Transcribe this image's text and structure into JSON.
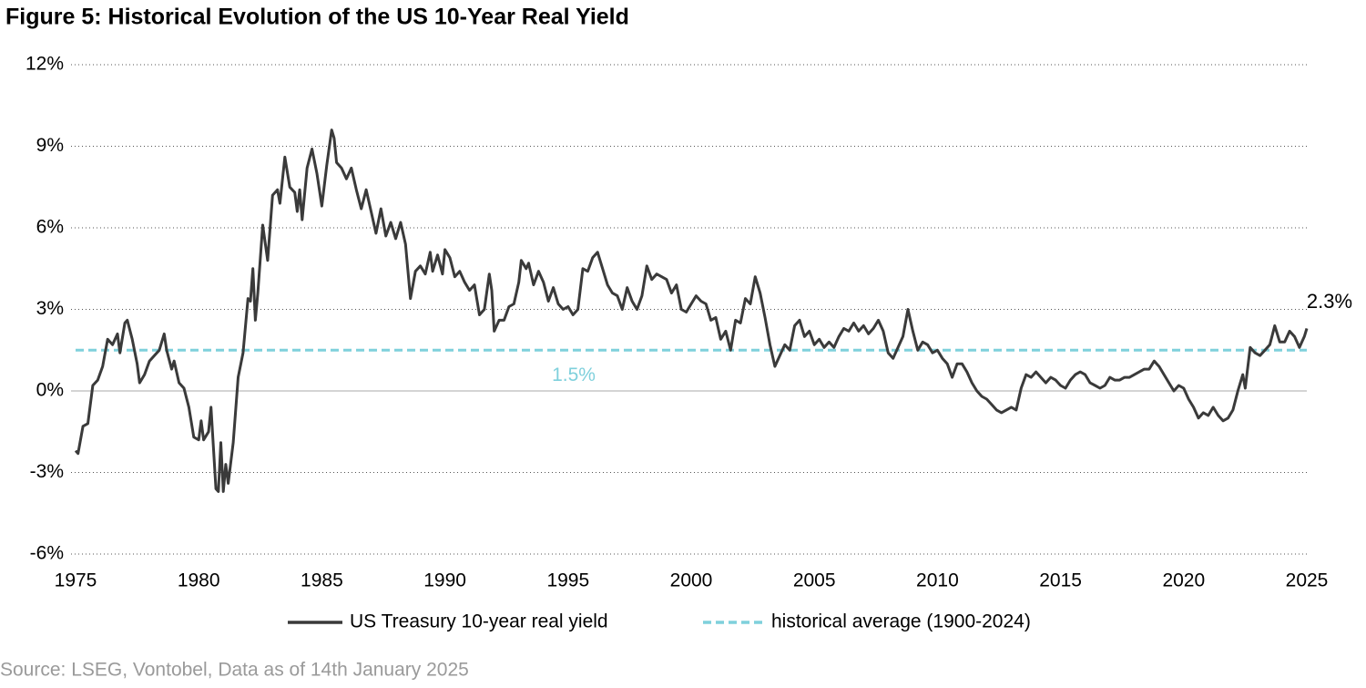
{
  "chart_data": {
    "type": "line",
    "title": "Figure 5: Historical Evolution of the US 10-Year Real Yield",
    "source": "Source: LSEG, Vontobel, Data as of 14th January 2025",
    "xlim": [
      1975,
      2025
    ],
    "xticks": [
      1975,
      1980,
      1985,
      1990,
      1995,
      2000,
      2005,
      2010,
      2015,
      2020,
      2025
    ],
    "ylim": [
      -6,
      12
    ],
    "yticks": [
      {
        "value": -6,
        "label": "-6%"
      },
      {
        "value": -3,
        "label": "-3%"
      },
      {
        "value": 0,
        "label": "0%"
      },
      {
        "value": 3,
        "label": "3%"
      },
      {
        "value": 6,
        "label": "6%"
      },
      {
        "value": 9,
        "label": "9%"
      },
      {
        "value": 12,
        "label": "12%"
      }
    ],
    "grid": true,
    "x": [
      1975.0,
      1975.1,
      1975.3,
      1975.5,
      1975.7,
      1975.9,
      1976.1,
      1976.3,
      1976.5,
      1976.7,
      1976.8,
      1977.0,
      1977.1,
      1977.3,
      1977.5,
      1977.6,
      1977.8,
      1978.0,
      1978.2,
      1978.4,
      1978.6,
      1978.7,
      1978.9,
      1979.0,
      1979.2,
      1979.4,
      1979.6,
      1979.8,
      1980.0,
      1980.1,
      1980.2,
      1980.4,
      1980.5,
      1980.7,
      1980.8,
      1980.9,
      1981.0,
      1981.1,
      1981.2,
      1981.4,
      1981.6,
      1981.8,
      1982.0,
      1982.1,
      1982.2,
      1982.3,
      1982.4,
      1982.6,
      1982.8,
      1983.0,
      1983.2,
      1983.3,
      1983.5,
      1983.7,
      1983.9,
      1984.0,
      1984.1,
      1984.2,
      1984.4,
      1984.6,
      1984.8,
      1984.9,
      1985.0,
      1985.2,
      1985.4,
      1985.5,
      1985.6,
      1985.8,
      1986.0,
      1986.2,
      1986.4,
      1986.6,
      1986.8,
      1987.0,
      1987.2,
      1987.4,
      1987.6,
      1987.8,
      1988.0,
      1988.2,
      1988.4,
      1988.6,
      1988.8,
      1989.0,
      1989.2,
      1989.4,
      1989.5,
      1989.7,
      1989.9,
      1990.0,
      1990.2,
      1990.4,
      1990.6,
      1990.8,
      1991.0,
      1991.2,
      1991.4,
      1991.6,
      1991.8,
      1991.9,
      1992.0,
      1992.2,
      1992.4,
      1992.6,
      1992.8,
      1993.0,
      1993.1,
      1993.3,
      1993.4,
      1993.6,
      1993.8,
      1994.0,
      1994.2,
      1994.4,
      1994.6,
      1994.8,
      1995.0,
      1995.2,
      1995.4,
      1995.6,
      1995.8,
      1996.0,
      1996.2,
      1996.4,
      1996.6,
      1996.8,
      1997.0,
      1997.2,
      1997.4,
      1997.6,
      1997.8,
      1998.0,
      1998.2,
      1998.4,
      1998.6,
      1998.8,
      1999.0,
      1999.2,
      1999.4,
      1999.6,
      1999.8,
      2000.0,
      2000.2,
      2000.4,
      2000.6,
      2000.8,
      2001.0,
      2001.2,
      2001.4,
      2001.6,
      2001.8,
      2002.0,
      2002.2,
      2002.4,
      2002.6,
      2002.8,
      2003.0,
      2003.2,
      2003.4,
      2003.6,
      2003.8,
      2004.0,
      2004.2,
      2004.4,
      2004.6,
      2004.8,
      2005.0,
      2005.2,
      2005.4,
      2005.6,
      2005.8,
      2006.0,
      2006.2,
      2006.4,
      2006.6,
      2006.8,
      2007.0,
      2007.2,
      2007.4,
      2007.6,
      2007.8,
      2008.0,
      2008.2,
      2008.4,
      2008.6,
      2008.8,
      2009.0,
      2009.2,
      2009.4,
      2009.6,
      2009.8,
      2010.0,
      2010.2,
      2010.4,
      2010.6,
      2010.8,
      2011.0,
      2011.2,
      2011.4,
      2011.6,
      2011.8,
      2012.0,
      2012.2,
      2012.4,
      2012.6,
      2012.8,
      2013.0,
      2013.2,
      2013.4,
      2013.6,
      2013.8,
      2014.0,
      2014.2,
      2014.4,
      2014.6,
      2014.8,
      2015.0,
      2015.2,
      2015.4,
      2015.6,
      2015.8,
      2016.0,
      2016.2,
      2016.4,
      2016.6,
      2016.8,
      2017.0,
      2017.2,
      2017.4,
      2017.6,
      2017.8,
      2018.0,
      2018.2,
      2018.4,
      2018.6,
      2018.8,
      2019.0,
      2019.2,
      2019.4,
      2019.6,
      2019.8,
      2020.0,
      2020.2,
      2020.4,
      2020.6,
      2020.8,
      2021.0,
      2021.2,
      2021.4,
      2021.6,
      2021.8,
      2022.0,
      2022.2,
      2022.4,
      2022.5,
      2022.7,
      2022.9,
      2023.1,
      2023.3,
      2023.5,
      2023.7,
      2023.9,
      2024.1,
      2024.3,
      2024.5,
      2024.7,
      2024.9,
      2025.0
    ],
    "series": [
      {
        "name": "US Treasury 10-year real yield",
        "color": "#3a3a3a",
        "last_value_label": "2.3%",
        "values": [
          -2.2,
          -2.3,
          -1.3,
          -1.2,
          0.2,
          0.4,
          0.9,
          1.9,
          1.7,
          2.1,
          1.4,
          2.5,
          2.6,
          1.9,
          1.0,
          0.3,
          0.6,
          1.1,
          1.3,
          1.5,
          2.1,
          1.5,
          0.8,
          1.1,
          0.3,
          0.1,
          -0.6,
          -1.7,
          -1.8,
          -1.1,
          -1.8,
          -1.5,
          -0.6,
          -3.6,
          -3.7,
          -1.9,
          -3.7,
          -2.7,
          -3.4,
          -1.9,
          0.5,
          1.4,
          3.4,
          3.3,
          4.5,
          2.6,
          3.6,
          6.1,
          4.8,
          7.2,
          7.4,
          6.9,
          8.6,
          7.5,
          7.3,
          6.6,
          7.4,
          6.3,
          8.2,
          8.9,
          8.0,
          7.4,
          6.8,
          8.3,
          9.6,
          9.3,
          8.4,
          8.2,
          7.8,
          8.2,
          7.4,
          6.7,
          7.4,
          6.6,
          5.8,
          6.7,
          5.7,
          6.2,
          5.6,
          6.2,
          5.4,
          3.4,
          4.4,
          4.6,
          4.3,
          5.1,
          4.4,
          5.0,
          4.3,
          5.2,
          4.9,
          4.2,
          4.4,
          4.0,
          3.7,
          3.9,
          2.8,
          3.0,
          4.3,
          3.7,
          2.2,
          2.6,
          2.6,
          3.1,
          3.2,
          4.0,
          4.8,
          4.5,
          4.7,
          3.9,
          4.4,
          4.0,
          3.3,
          3.8,
          3.2,
          3.0,
          3.1,
          2.8,
          3.0,
          4.5,
          4.4,
          4.9,
          5.1,
          4.5,
          3.9,
          3.6,
          3.5,
          3.0,
          3.8,
          3.3,
          3.0,
          3.5,
          4.6,
          4.1,
          4.3,
          4.2,
          4.1,
          3.6,
          3.9,
          3.0,
          2.9,
          3.2,
          3.5,
          3.3,
          3.2,
          2.6,
          2.7,
          1.9,
          2.2,
          1.5,
          2.6,
          2.5,
          3.4,
          3.2,
          4.2,
          3.6,
          2.7,
          1.7,
          0.9,
          1.3,
          1.7,
          1.5,
          2.4,
          2.6,
          2.0,
          2.2,
          1.7,
          1.9,
          1.6,
          1.8,
          1.6,
          2.0,
          2.3,
          2.2,
          2.5,
          2.2,
          2.4,
          2.1,
          2.3,
          2.6,
          2.2,
          1.4,
          1.2,
          1.6,
          2.0,
          3.0,
          2.2,
          1.5,
          1.8,
          1.7,
          1.4,
          1.5,
          1.2,
          1.0,
          0.5,
          1.0,
          1.0,
          0.7,
          0.3,
          0.0,
          -0.2,
          -0.3,
          -0.5,
          -0.7,
          -0.8,
          -0.7,
          -0.6,
          -0.7,
          0.1,
          0.6,
          0.5,
          0.7,
          0.5,
          0.3,
          0.5,
          0.4,
          0.2,
          0.1,
          0.4,
          0.6,
          0.7,
          0.6,
          0.3,
          0.2,
          0.1,
          0.2,
          0.5,
          0.4,
          0.4,
          0.5,
          0.5,
          0.6,
          0.7,
          0.8,
          0.8,
          1.1,
          0.9,
          0.6,
          0.3,
          0.0,
          0.2,
          0.1,
          -0.3,
          -0.6,
          -1.0,
          -0.8,
          -0.9,
          -0.6,
          -0.9,
          -1.1,
          -1.0,
          -0.7,
          0.0,
          0.6,
          0.1,
          1.6,
          1.4,
          1.3,
          1.5,
          1.7,
          2.4,
          1.8,
          1.8,
          2.2,
          2.0,
          1.6,
          2.0,
          2.3
        ]
      }
    ],
    "reference_line": {
      "name": "historical average (1900-2024)",
      "value": 1.5,
      "value_label": "1.5%",
      "color": "#7fd0dc"
    }
  }
}
